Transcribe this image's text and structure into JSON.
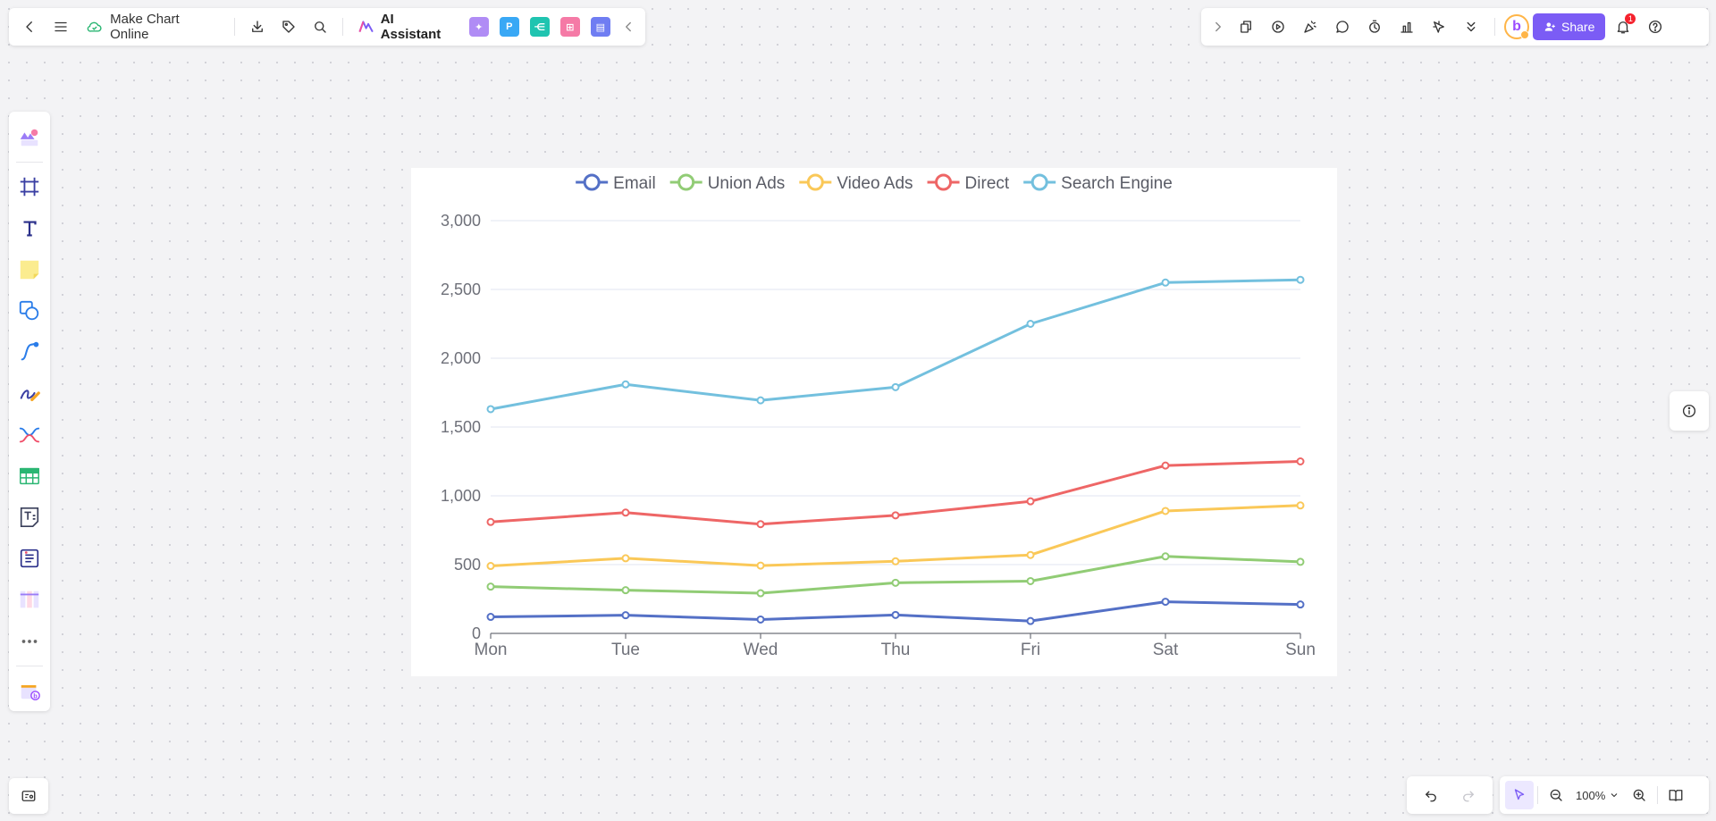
{
  "header": {
    "file_title": "Make Chart Online",
    "ai_label": "AI Assistant",
    "share_label": "Share",
    "notification_count": "1",
    "avatar_letter": "b",
    "app_tiles": [
      {
        "name": "ai-image-icon",
        "glyph": "✦",
        "color": "#b08cf5"
      },
      {
        "name": "presentation-app-icon",
        "glyph": "P",
        "color": "#39a8f5"
      },
      {
        "name": "mindmap-app-icon",
        "glyph": "⋲",
        "color": "#1fc4b0"
      },
      {
        "name": "flowchart-app-icon",
        "glyph": "⊞",
        "color": "#f57aa6"
      },
      {
        "name": "chat-app-icon",
        "glyph": "▤",
        "color": "#6f7df2"
      }
    ]
  },
  "footer": {
    "zoom_level": "100%"
  },
  "colors": {
    "accent": "#7b5cf5",
    "canvas_bg": "#f3f3f5"
  },
  "chart_data": {
    "type": "line",
    "categories": [
      "Mon",
      "Tue",
      "Wed",
      "Thu",
      "Fri",
      "Sat",
      "Sun"
    ],
    "ylim": [
      0,
      3000
    ],
    "yticks": [
      "0",
      "500",
      "1,000",
      "1,500",
      "2,000",
      "2,500",
      "3,000"
    ],
    "ytick_values": [
      0,
      500,
      1000,
      1500,
      2000,
      2500,
      3000
    ],
    "series": [
      {
        "name": "Email",
        "color": "#5470c6",
        "values": [
          120,
          132,
          101,
          134,
          90,
          230,
          210
        ]
      },
      {
        "name": "Union Ads",
        "color": "#91cc75",
        "values": [
          340,
          314,
          292,
          368,
          380,
          560,
          520
        ]
      },
      {
        "name": "Video Ads",
        "color": "#fac858",
        "values": [
          490,
          546,
          493,
          524,
          570,
          890,
          930
        ]
      },
      {
        "name": "Direct",
        "color": "#ee6666",
        "values": [
          810,
          878,
          794,
          858,
          960,
          1220,
          1250
        ]
      },
      {
        "name": "Search Engine",
        "color": "#73c0de",
        "values": [
          1630,
          1810,
          1694,
          1790,
          2250,
          2550,
          2570
        ]
      }
    ]
  }
}
